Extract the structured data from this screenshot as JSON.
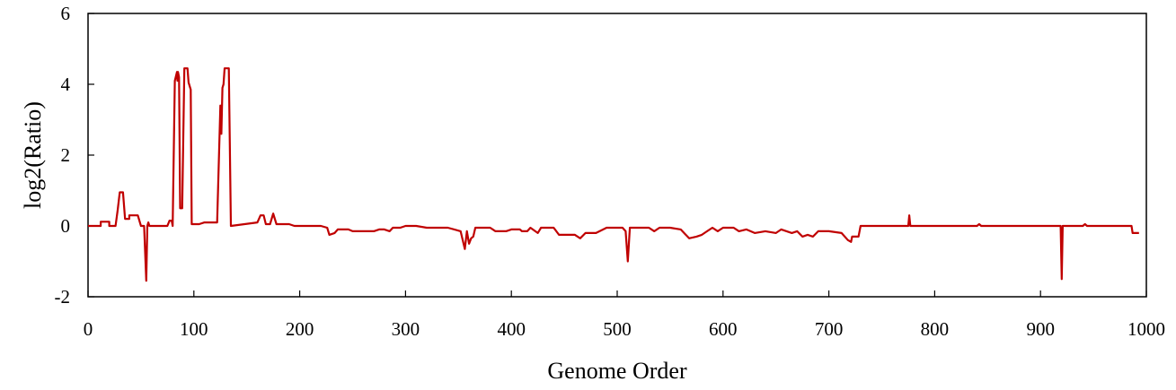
{
  "chart_data": {
    "type": "line",
    "title": "",
    "xlabel": "Genome Order",
    "ylabel": "log2(Ratio)",
    "xlim": [
      0,
      1000
    ],
    "ylim": [
      -2,
      6
    ],
    "xticks": [
      0,
      100,
      200,
      300,
      400,
      500,
      600,
      700,
      800,
      900,
      1000
    ],
    "yticks": [
      -2,
      0,
      2,
      4,
      6
    ],
    "grid": false,
    "legend": "none",
    "line_color": "#c00000",
    "series": [
      {
        "points": [
          [
            0,
            0
          ],
          [
            12,
            0
          ],
          [
            12,
            0.12
          ],
          [
            20,
            0.12
          ],
          [
            20,
            0
          ],
          [
            26,
            0
          ],
          [
            28,
            0.45
          ],
          [
            30,
            0.95
          ],
          [
            33,
            0.95
          ],
          [
            35,
            0.2
          ],
          [
            39,
            0.2
          ],
          [
            39,
            0.3
          ],
          [
            47,
            0.3
          ],
          [
            50,
            0
          ],
          [
            53,
            0
          ],
          [
            55,
            -1.55
          ],
          [
            56,
            0
          ],
          [
            57,
            0.1
          ],
          [
            58,
            0
          ],
          [
            75,
            0
          ],
          [
            77,
            0.15
          ],
          [
            79,
            0.15
          ],
          [
            80,
            0
          ],
          [
            82,
            4.1
          ],
          [
            84,
            4.35
          ],
          [
            84.5,
            4.1
          ],
          [
            85,
            4.35
          ],
          [
            86,
            4.2
          ],
          [
            87,
            0.5
          ],
          [
            89,
            0.5
          ],
          [
            91,
            4.45
          ],
          [
            94,
            4.45
          ],
          [
            95,
            4.05
          ],
          [
            97,
            3.85
          ],
          [
            98,
            0.05
          ],
          [
            105,
            0.05
          ],
          [
            110,
            0.1
          ],
          [
            115,
            0.1
          ],
          [
            122,
            0.1
          ],
          [
            125,
            3.4
          ],
          [
            126,
            2.6
          ],
          [
            127,
            3.9
          ],
          [
            128,
            4
          ],
          [
            129,
            4.45
          ],
          [
            133,
            4.45
          ],
          [
            135,
            0
          ],
          [
            160,
            0.1
          ],
          [
            163,
            0.3
          ],
          [
            166,
            0.3
          ],
          [
            168,
            0.05
          ],
          [
            172,
            0.05
          ],
          [
            175,
            0.35
          ],
          [
            178,
            0.05
          ],
          [
            190,
            0.05
          ],
          [
            195,
            0
          ],
          [
            200,
            0
          ],
          [
            220,
            0
          ],
          [
            226,
            -0.05
          ],
          [
            228,
            -0.25
          ],
          [
            233,
            -0.2
          ],
          [
            236,
            -0.1
          ],
          [
            246,
            -0.1
          ],
          [
            250,
            -0.15
          ],
          [
            270,
            -0.15
          ],
          [
            275,
            -0.1
          ],
          [
            280,
            -0.1
          ],
          [
            285,
            -0.15
          ],
          [
            288,
            -0.05
          ],
          [
            295,
            -0.05
          ],
          [
            300,
            0
          ],
          [
            310,
            0
          ],
          [
            320,
            -0.05
          ],
          [
            340,
            -0.05
          ],
          [
            352,
            -0.15
          ],
          [
            356,
            -0.65
          ],
          [
            358,
            -0.15
          ],
          [
            360,
            -0.5
          ],
          [
            362,
            -0.35
          ],
          [
            364,
            -0.3
          ],
          [
            366,
            -0.05
          ],
          [
            380,
            -0.05
          ],
          [
            385,
            -0.15
          ],
          [
            395,
            -0.15
          ],
          [
            400,
            -0.1
          ],
          [
            408,
            -0.1
          ],
          [
            410,
            -0.15
          ],
          [
            415,
            -0.15
          ],
          [
            418,
            -0.05
          ],
          [
            425,
            -0.2
          ],
          [
            428,
            -0.05
          ],
          [
            440,
            -0.05
          ],
          [
            445,
            -0.25
          ],
          [
            460,
            -0.25
          ],
          [
            465,
            -0.35
          ],
          [
            470,
            -0.2
          ],
          [
            480,
            -0.2
          ],
          [
            490,
            -0.05
          ],
          [
            505,
            -0.05
          ],
          [
            508,
            -0.15
          ],
          [
            510,
            -1
          ],
          [
            512,
            -0.05
          ],
          [
            530,
            -0.05
          ],
          [
            535,
            -0.15
          ],
          [
            540,
            -0.05
          ],
          [
            550,
            -0.05
          ],
          [
            560,
            -0.1
          ],
          [
            568,
            -0.35
          ],
          [
            575,
            -0.3
          ],
          [
            580,
            -0.25
          ],
          [
            585,
            -0.15
          ],
          [
            590,
            -0.05
          ],
          [
            595,
            -0.15
          ],
          [
            600,
            -0.05
          ],
          [
            610,
            -0.05
          ],
          [
            615,
            -0.15
          ],
          [
            622,
            -0.1
          ],
          [
            630,
            -0.2
          ],
          [
            640,
            -0.15
          ],
          [
            650,
            -0.2
          ],
          [
            655,
            -0.1
          ],
          [
            665,
            -0.2
          ],
          [
            670,
            -0.15
          ],
          [
            675,
            -0.3
          ],
          [
            680,
            -0.25
          ],
          [
            685,
            -0.3
          ],
          [
            690,
            -0.15
          ],
          [
            700,
            -0.15
          ],
          [
            712,
            -0.2
          ],
          [
            718,
            -0.4
          ],
          [
            721,
            -0.45
          ],
          [
            722,
            -0.3
          ],
          [
            728,
            -0.3
          ],
          [
            730,
            0
          ],
          [
            775,
            0
          ],
          [
            776,
            0.3
          ],
          [
            777,
            0
          ],
          [
            840,
            0
          ],
          [
            842,
            0.05
          ],
          [
            844,
            0
          ],
          [
            900,
            0
          ],
          [
            919,
            0
          ],
          [
            920,
            -1.5
          ],
          [
            921,
            0
          ],
          [
            940,
            0
          ],
          [
            942,
            0.05
          ],
          [
            944,
            0
          ],
          [
            986,
            0
          ],
          [
            987,
            -0.2
          ],
          [
            993,
            -0.2
          ]
        ]
      }
    ]
  }
}
